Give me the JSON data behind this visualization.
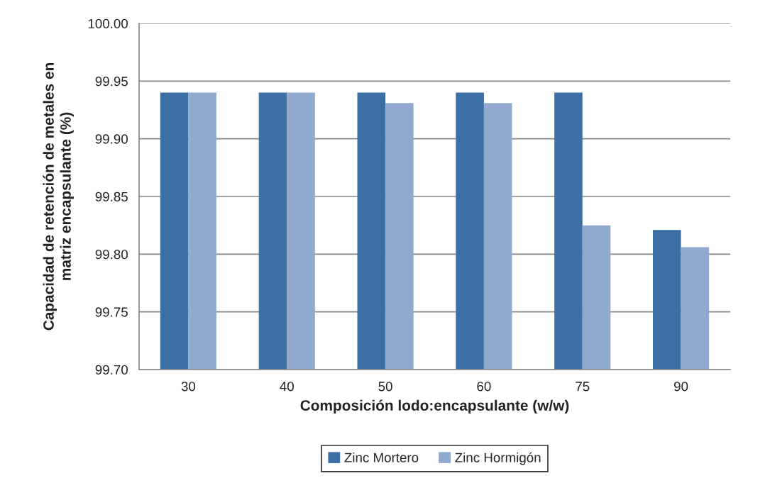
{
  "chart_data": {
    "type": "bar",
    "xlabel": "Composición lodo:encapsulante (w/w)",
    "ylabel": "Capacidad de retención de metales en\nmatriz encapsulante (%)",
    "categories": [
      "30",
      "40",
      "50",
      "60",
      "75",
      "90"
    ],
    "series": [
      {
        "name": "Zinc Mortero",
        "color": "#3c70a4",
        "values": [
          99.94,
          99.94,
          99.94,
          99.94,
          99.94,
          99.821
        ]
      },
      {
        "name": "Zinc Hormigón",
        "color": "#92a9cf",
        "values": [
          99.94,
          99.94,
          99.931,
          99.931,
          99.825,
          99.806
        ]
      }
    ],
    "ylim": [
      99.7,
      100.0
    ],
    "yticks": [
      {
        "value": 99.7,
        "label": "99.70"
      },
      {
        "value": 99.75,
        "label": "99.75"
      },
      {
        "value": 99.8,
        "label": "99.80"
      },
      {
        "value": 99.85,
        "label": "99.85"
      },
      {
        "value": 99.9,
        "label": "99.90"
      },
      {
        "value": 99.95,
        "label": "99.95"
      },
      {
        "value": 100.0,
        "label": "100.00"
      }
    ],
    "grid": "y",
    "legend": "bottom"
  }
}
